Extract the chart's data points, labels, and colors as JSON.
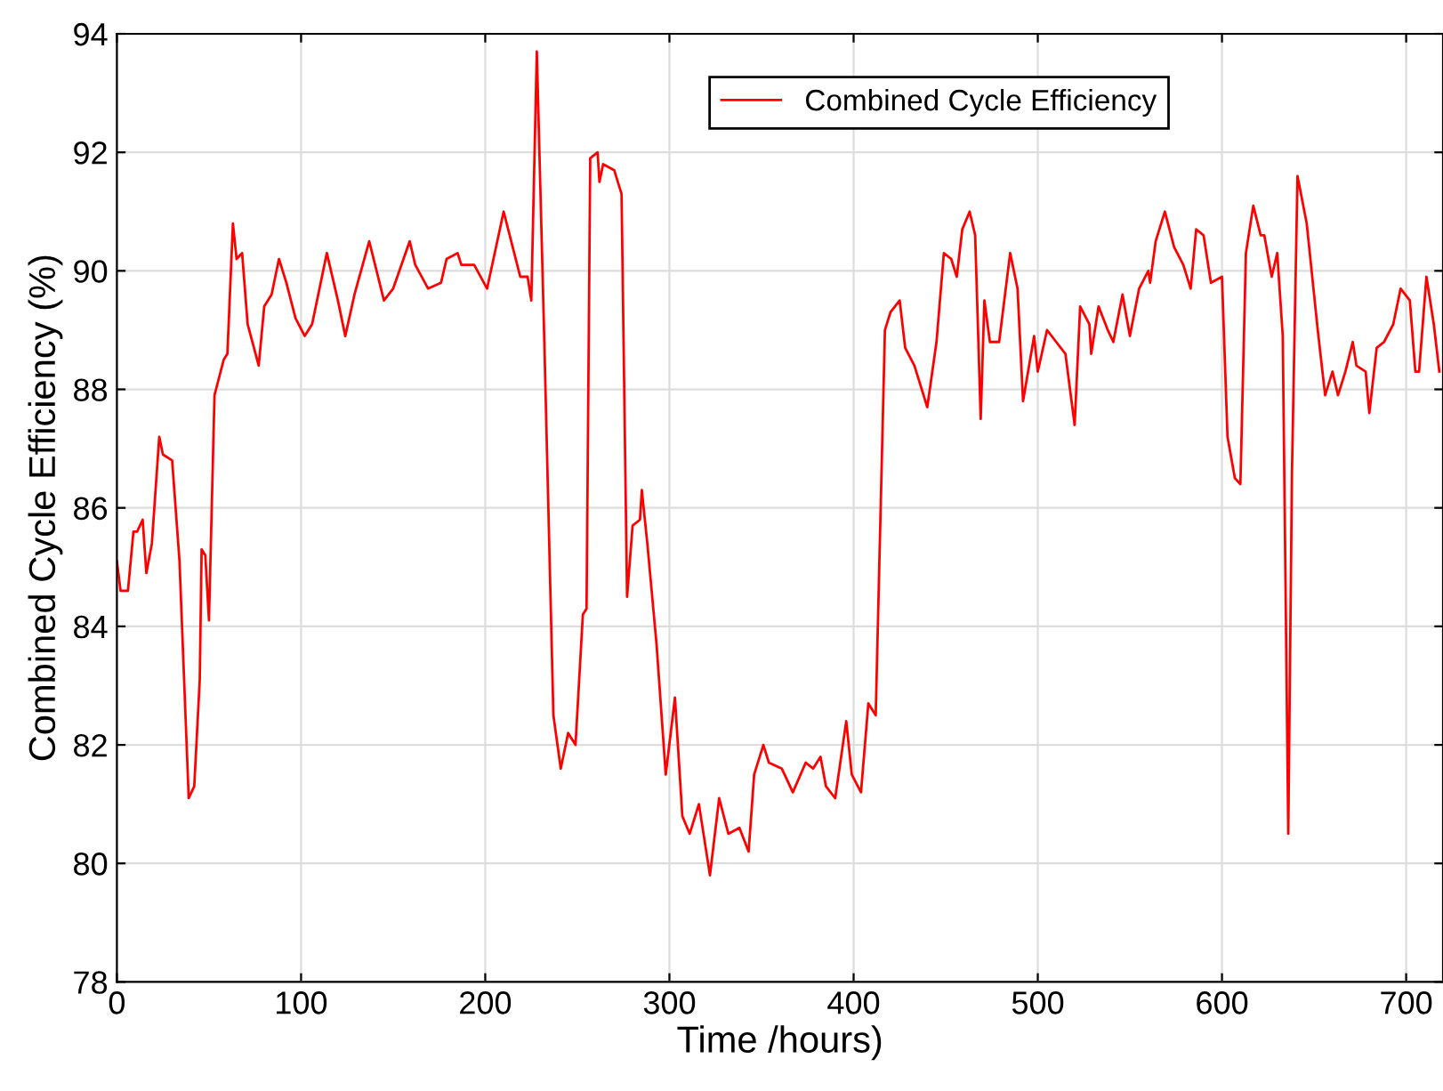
{
  "chart_data": {
    "type": "line",
    "xlabel": "Time /hours)",
    "ylabel": "Combined Cycle Efficiency (%)",
    "xlim": [
      0,
      720
    ],
    "xticks": [
      0,
      100,
      200,
      300,
      400,
      500,
      600,
      700
    ],
    "ylim": [
      78,
      94
    ],
    "yticks": [
      78,
      80,
      82,
      84,
      86,
      88,
      90,
      92,
      94
    ],
    "grid": true,
    "legend": "top",
    "marker": "none",
    "line_style": "solid",
    "series": [
      {
        "name": "Combined Cycle Efficiency",
        "color": "#ff0000",
        "x": [
          0,
          2,
          6,
          9,
          11,
          14,
          16,
          19,
          23,
          25,
          30,
          34,
          39,
          42,
          45,
          46,
          48,
          50,
          53,
          58,
          60,
          63,
          65,
          68,
          71,
          77,
          80,
          84,
          88,
          92,
          97,
          102,
          106,
          114,
          120,
          124,
          129,
          137,
          145,
          150,
          159,
          162,
          169,
          176,
          179,
          185,
          187,
          194,
          201,
          210,
          219,
          223,
          225,
          228,
          232,
          237,
          241,
          245,
          249,
          253,
          255,
          257,
          261,
          262,
          264,
          270,
          274,
          277,
          280,
          284,
          285,
          288,
          293,
          298,
          303,
          307,
          311,
          316,
          322,
          327,
          332,
          338,
          343,
          346,
          351,
          354,
          361,
          367,
          374,
          378,
          382,
          385,
          390,
          396,
          399,
          404,
          408,
          412,
          417,
          420,
          425,
          428,
          433,
          440,
          445,
          449,
          453,
          456,
          459,
          463,
          466,
          469,
          471,
          474,
          479,
          485,
          489,
          492,
          498,
          500,
          505,
          510,
          515,
          520,
          523,
          528,
          529,
          533,
          538,
          541,
          546,
          550,
          555,
          560,
          561,
          564,
          569,
          574,
          579,
          583,
          586,
          590,
          594,
          600,
          603,
          607,
          610,
          613,
          617,
          621,
          623,
          627,
          630,
          633,
          636,
          638,
          641,
          646,
          652,
          656,
          660,
          663,
          667,
          671,
          673,
          678,
          680,
          684,
          688,
          693,
          697,
          702,
          705,
          707,
          711,
          715,
          718
        ],
        "values": [
          85.1,
          84.6,
          84.6,
          85.6,
          85.6,
          85.8,
          84.9,
          85.4,
          87.2,
          86.9,
          86.8,
          85.1,
          81.1,
          81.3,
          83.1,
          85.3,
          85.2,
          84.1,
          87.9,
          88.5,
          88.6,
          90.8,
          90.2,
          90.3,
          89.1,
          88.4,
          89.4,
          89.6,
          90.2,
          89.8,
          89.2,
          88.9,
          89.1,
          90.3,
          89.5,
          88.9,
          89.6,
          90.5,
          89.5,
          89.7,
          90.5,
          90.1,
          89.7,
          89.8,
          90.2,
          90.3,
          90.1,
          90.1,
          89.7,
          91.0,
          89.9,
          89.9,
          89.5,
          93.7,
          88.9,
          82.5,
          81.6,
          82.2,
          82.0,
          84.2,
          84.3,
          91.9,
          92.0,
          91.5,
          91.8,
          91.7,
          91.3,
          84.5,
          85.7,
          85.8,
          86.3,
          85.4,
          83.7,
          81.5,
          82.8,
          80.8,
          80.5,
          81.0,
          79.8,
          81.1,
          80.5,
          80.6,
          80.2,
          81.5,
          82.0,
          81.7,
          81.6,
          81.2,
          81.7,
          81.6,
          81.8,
          81.3,
          81.1,
          82.4,
          81.5,
          81.2,
          82.7,
          82.5,
          89.0,
          89.3,
          89.5,
          88.7,
          88.4,
          87.7,
          88.8,
          90.3,
          90.2,
          89.9,
          90.7,
          91.0,
          90.6,
          87.5,
          89.5,
          88.8,
          88.8,
          90.3,
          89.7,
          87.8,
          88.9,
          88.3,
          89.0,
          88.8,
          88.6,
          87.4,
          89.4,
          89.1,
          88.6,
          89.4,
          89.0,
          88.8,
          89.6,
          88.9,
          89.7,
          90.0,
          89.8,
          90.5,
          91.0,
          90.4,
          90.1,
          89.7,
          90.7,
          90.6,
          89.8,
          89.9,
          87.2,
          86.5,
          86.4,
          90.3,
          91.1,
          90.6,
          90.6,
          89.9,
          90.3,
          88.9,
          80.5,
          86.6,
          91.6,
          90.8,
          89.0,
          87.9,
          88.3,
          87.9,
          88.3,
          88.8,
          88.4,
          88.3,
          87.6,
          88.7,
          88.8,
          89.1,
          89.7,
          89.5,
          88.3,
          88.3,
          89.9,
          89.1,
          88.3
        ]
      }
    ]
  }
}
